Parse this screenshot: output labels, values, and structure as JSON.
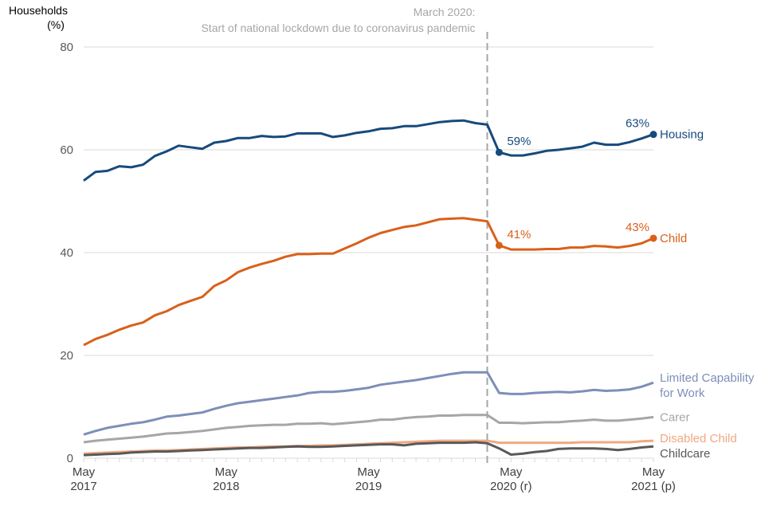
{
  "chart_data": {
    "type": "line",
    "ylabel": "Households (%)",
    "ylabel_lines": [
      "Households",
      "(%)"
    ],
    "ylim": [
      0,
      80
    ],
    "yticks": [
      0,
      20,
      40,
      60,
      80
    ],
    "grid": true,
    "legend": "end-of-line labels (right)",
    "x": [
      "May 2017",
      "Jun 2017",
      "Jul 2017",
      "Aug 2017",
      "Sep 2017",
      "Oct 2017",
      "Nov 2017",
      "Dec 2017",
      "Jan 2018",
      "Feb 2018",
      "Mar 2018",
      "Apr 2018",
      "May 2018",
      "Jun 2018",
      "Jul 2018",
      "Aug 2018",
      "Sep 2018",
      "Oct 2018",
      "Nov 2018",
      "Dec 2018",
      "Jan 2019",
      "Feb 2019",
      "Mar 2019",
      "Apr 2019",
      "May 2019",
      "Jun 2019",
      "Jul 2019",
      "Aug 2019",
      "Sep 2019",
      "Oct 2019",
      "Nov 2019",
      "Dec 2019",
      "Jan 2020",
      "Feb 2020",
      "Mar 2020",
      "Apr 2020",
      "May 2020",
      "Jun 2020",
      "Jul 2020",
      "Aug 2020",
      "Sep 2020",
      "Oct 2020",
      "Nov 2020",
      "Dec 2020",
      "Jan 2021",
      "Feb 2021",
      "Mar 2021",
      "Apr 2021",
      "May 2021"
    ],
    "xtick_labels": [
      {
        "index": 0,
        "lines": [
          "May",
          "2017"
        ]
      },
      {
        "index": 12,
        "lines": [
          "May",
          "2018"
        ]
      },
      {
        "index": 24,
        "lines": [
          "May",
          "2019"
        ]
      },
      {
        "index": 36,
        "lines": [
          "May",
          "2020 (r)"
        ]
      },
      {
        "index": 48,
        "lines": [
          "May",
          "2021 (p)"
        ]
      }
    ],
    "annotation": {
      "at": "Mar 2020",
      "lines": [
        "March 2020:",
        "Start of national lockdown due to coronavirus pandemic"
      ],
      "color": "#a6a6a6"
    },
    "series": [
      {
        "name": "Housing",
        "color": "#174a7c",
        "values": [
          54,
          55.7,
          55.9,
          56.8,
          56.6,
          57.1,
          58.8,
          59.7,
          60.8,
          60.5,
          60.2,
          61.4,
          61.7,
          62.3,
          62.3,
          62.7,
          62.5,
          62.6,
          63.2,
          63.2,
          63.2,
          62.5,
          62.8,
          63.3,
          63.6,
          64.1,
          64.2,
          64.6,
          64.6,
          65.0,
          65.4,
          65.6,
          65.7,
          65.2,
          64.9,
          59.5,
          58.9,
          58.9,
          59.3,
          59.8,
          60.0,
          60.3,
          60.6,
          61.4,
          61.0,
          61.0,
          61.5,
          62.2,
          63.0
        ],
        "point_labels": [
          {
            "index": 35,
            "text": "59%"
          },
          {
            "index": 48,
            "text": "63%"
          }
        ]
      },
      {
        "name": "Child",
        "color": "#d9601a",
        "values": [
          22,
          23.2,
          24,
          25,
          25.8,
          26.4,
          27.8,
          28.6,
          29.8,
          30.6,
          31.4,
          33.5,
          34.6,
          36.2,
          37.1,
          37.8,
          38.4,
          39.2,
          39.7,
          39.7,
          39.8,
          39.8,
          40.8,
          41.8,
          42.9,
          43.8,
          44.4,
          45.0,
          45.3,
          45.9,
          46.5,
          46.6,
          46.7,
          46.4,
          46.1,
          41.4,
          40.6,
          40.6,
          40.6,
          40.7,
          40.7,
          41.0,
          41.0,
          41.3,
          41.2,
          41.0,
          41.3,
          41.8,
          42.8
        ],
        "point_labels": [
          {
            "index": 35,
            "text": "41%"
          },
          {
            "index": 48,
            "text": "43%"
          }
        ]
      },
      {
        "name": "Limited Capability for Work",
        "name_lines": [
          "Limited Capability",
          "for Work"
        ],
        "color": "#7d8fb8",
        "values": [
          4.6,
          5.3,
          5.9,
          6.3,
          6.7,
          7.0,
          7.5,
          8.1,
          8.3,
          8.6,
          8.9,
          9.6,
          10.2,
          10.7,
          11.0,
          11.3,
          11.6,
          11.9,
          12.2,
          12.7,
          12.9,
          12.9,
          13.1,
          13.4,
          13.7,
          14.3,
          14.6,
          14.9,
          15.2,
          15.6,
          16.0,
          16.4,
          16.7,
          16.7,
          16.7,
          12.7,
          12.5,
          12.5,
          12.7,
          12.8,
          12.9,
          12.8,
          13.0,
          13.3,
          13.1,
          13.2,
          13.4,
          13.9,
          14.7
        ]
      },
      {
        "name": "Carer",
        "color": "#a6a6a6",
        "values": [
          3.1,
          3.4,
          3.6,
          3.8,
          4.0,
          4.2,
          4.5,
          4.8,
          4.9,
          5.1,
          5.3,
          5.6,
          5.9,
          6.1,
          6.3,
          6.4,
          6.5,
          6.5,
          6.7,
          6.7,
          6.8,
          6.6,
          6.8,
          7.0,
          7.2,
          7.5,
          7.5,
          7.8,
          8.0,
          8.1,
          8.3,
          8.3,
          8.4,
          8.4,
          8.4,
          6.9,
          6.9,
          6.8,
          6.9,
          7.0,
          7.0,
          7.2,
          7.3,
          7.5,
          7.3,
          7.3,
          7.5,
          7.7,
          8.0
        ]
      },
      {
        "name": "Disabled Child",
        "color": "#f0a982",
        "values": [
          0.9,
          1.0,
          1.1,
          1.2,
          1.3,
          1.4,
          1.5,
          1.5,
          1.6,
          1.7,
          1.8,
          1.9,
          2.0,
          2.1,
          2.1,
          2.2,
          2.3,
          2.3,
          2.4,
          2.4,
          2.5,
          2.5,
          2.6,
          2.7,
          2.8,
          2.9,
          3.0,
          3.1,
          3.2,
          3.3,
          3.4,
          3.4,
          3.4,
          3.4,
          3.4,
          3.0,
          3.0,
          3.0,
          3.0,
          3.0,
          3.0,
          3.0,
          3.1,
          3.1,
          3.1,
          3.1,
          3.1,
          3.3,
          3.4
        ]
      },
      {
        "name": "Childcare",
        "color": "#595959",
        "values": [
          0.6,
          0.7,
          0.8,
          0.9,
          1.1,
          1.2,
          1.3,
          1.3,
          1.4,
          1.5,
          1.6,
          1.7,
          1.8,
          1.9,
          2.0,
          2.0,
          2.1,
          2.2,
          2.3,
          2.2,
          2.2,
          2.3,
          2.4,
          2.5,
          2.6,
          2.7,
          2.7,
          2.5,
          2.8,
          2.9,
          3.0,
          3.0,
          3.0,
          3.1,
          2.9,
          1.9,
          0.7,
          0.9,
          1.2,
          1.4,
          1.8,
          1.9,
          1.9,
          1.9,
          1.8,
          1.6,
          1.8,
          2.1,
          2.3
        ]
      }
    ]
  }
}
